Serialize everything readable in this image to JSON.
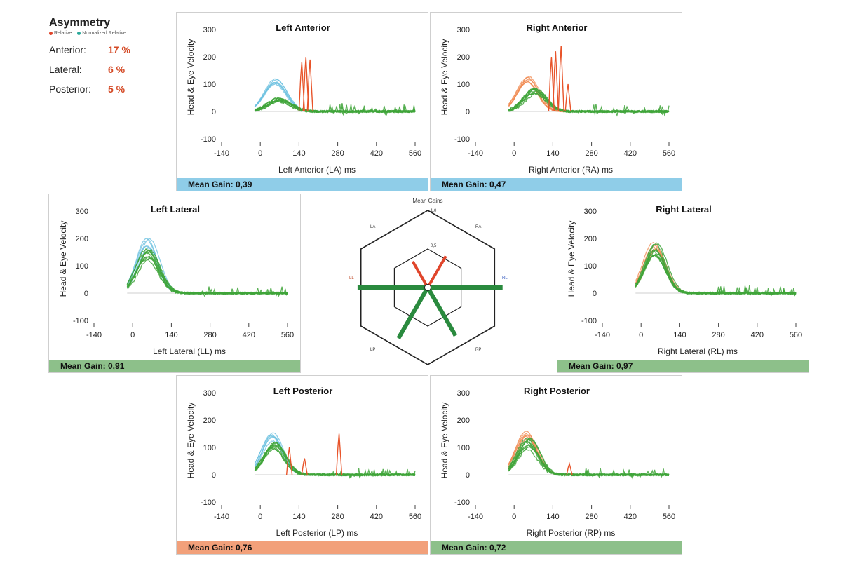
{
  "asymmetry": {
    "title": "Asymmetry",
    "legend": [
      {
        "label": "Relative",
        "color": "#e0452b"
      },
      {
        "label": "Normalized Relative",
        "color": "#2aa89a"
      }
    ],
    "rows": [
      {
        "label": "Anterior:",
        "value": "17 %"
      },
      {
        "label": "Lateral:",
        "value": "6 %"
      },
      {
        "label": "Posterior:",
        "value": "5 %"
      }
    ]
  },
  "colors": {
    "head": "#6cc0e0",
    "head_right": "#f08a50",
    "eye": "#3fa43a",
    "saccade": "#e8542a",
    "bar_blue": "#8fcde8",
    "bar_green": "#8dc08a",
    "bar_orange": "#f2a07a"
  },
  "chart_data": [
    {
      "id": "LA",
      "type": "line",
      "title": "Left Anterior",
      "xlabel": "Left Anterior (LA) ms",
      "ylabel": "Head & Eye Velocity",
      "xticks": [
        -140,
        0,
        140,
        280,
        420,
        560
      ],
      "yticks": [
        -100,
        0,
        100,
        200,
        300
      ],
      "xlim": [
        -140,
        560
      ],
      "ylim": [
        -100,
        300
      ],
      "head_peak": 110,
      "head_center": 55,
      "head_width": 40,
      "head_color": "head",
      "eye_peak": 45,
      "eye_center": 70,
      "eye_width": 42,
      "saccades": [
        {
          "x": 150,
          "y": 180
        },
        {
          "x": 165,
          "y": 200
        },
        {
          "x": 180,
          "y": 190
        }
      ],
      "mean_gain": "Mean Gain: 0,39",
      "bar_color": "bar_blue"
    },
    {
      "id": "RA",
      "type": "line",
      "title": "Right Anterior",
      "xlabel": "Right Anterior (RA) ms",
      "ylabel": "Head & Eye Velocity",
      "xticks": [
        -140,
        0,
        140,
        280,
        420,
        560
      ],
      "yticks": [
        -100,
        0,
        100,
        200,
        300
      ],
      "xlim": [
        -140,
        560
      ],
      "ylim": [
        -100,
        300
      ],
      "head_peak": 120,
      "head_center": 50,
      "head_width": 38,
      "head_color": "head_right",
      "eye_peak": 75,
      "eye_center": 75,
      "eye_width": 40,
      "saccades": [
        {
          "x": 135,
          "y": 200
        },
        {
          "x": 150,
          "y": 220
        },
        {
          "x": 170,
          "y": 240
        },
        {
          "x": 195,
          "y": 100
        }
      ],
      "mean_gain": "Mean Gain: 0,47",
      "bar_color": "bar_blue"
    },
    {
      "id": "LL",
      "type": "line",
      "title": "Left Lateral",
      "xlabel": "Left Lateral (LL) ms",
      "ylabel": "Head & Eye Velocity",
      "xticks": [
        -140,
        0,
        140,
        280,
        420,
        560
      ],
      "yticks": [
        -100,
        0,
        100,
        200,
        300
      ],
      "xlim": [
        -140,
        560
      ],
      "ylim": [
        -100,
        300
      ],
      "head_peak": 185,
      "head_center": 55,
      "head_width": 38,
      "head_color": "head",
      "eye_peak": 140,
      "eye_center": 55,
      "eye_width": 40,
      "saccades": [],
      "mean_gain": "Mean Gain: 0,91",
      "bar_color": "bar_green"
    },
    {
      "id": "RL",
      "type": "line",
      "title": "Right Lateral",
      "xlabel": "Right Lateral (RL) ms",
      "ylabel": "Head & Eye Velocity",
      "xticks": [
        -140,
        0,
        140,
        280,
        420,
        560
      ],
      "yticks": [
        -100,
        0,
        100,
        200,
        300
      ],
      "xlim": [
        -140,
        560
      ],
      "ylim": [
        -100,
        300
      ],
      "head_peak": 175,
      "head_center": 50,
      "head_width": 38,
      "head_color": "head_right",
      "eye_peak": 170,
      "eye_center": 52,
      "eye_width": 38,
      "saccades": [],
      "mean_gain": "Mean Gain: 0,97",
      "bar_color": "bar_green"
    },
    {
      "id": "LP",
      "type": "line",
      "title": "Left Posterior",
      "xlabel": "Left Posterior (LP) ms",
      "ylabel": "Head & Eye Velocity",
      "xticks": [
        -140,
        0,
        140,
        280,
        420,
        560
      ],
      "yticks": [
        -100,
        0,
        100,
        200,
        300
      ],
      "xlim": [
        -140,
        560
      ],
      "ylim": [
        -100,
        300
      ],
      "head_peak": 140,
      "head_center": 45,
      "head_width": 38,
      "head_color": "head",
      "eye_peak": 115,
      "eye_center": 50,
      "eye_width": 38,
      "saccades": [
        {
          "x": 105,
          "y": 100
        },
        {
          "x": 160,
          "y": 60
        },
        {
          "x": 285,
          "y": 150
        }
      ],
      "mean_gain": "Mean Gain: 0,76",
      "bar_color": "bar_orange"
    },
    {
      "id": "RP",
      "type": "line",
      "title": "Right Posterior",
      "xlabel": "Right Posterior (RP) ms",
      "ylabel": "Head & Eye Velocity",
      "xticks": [
        -140,
        0,
        140,
        280,
        420,
        560
      ],
      "yticks": [
        -100,
        0,
        100,
        200,
        300
      ],
      "xlim": [
        -140,
        560
      ],
      "ylim": [
        -100,
        300
      ],
      "head_peak": 150,
      "head_center": 45,
      "head_width": 38,
      "head_color": "head_right",
      "eye_peak": 115,
      "eye_center": 50,
      "eye_width": 38,
      "saccades": [
        {
          "x": 200,
          "y": 40
        }
      ],
      "mean_gain": "Mean Gain: 0,72",
      "bar_color": "bar_green"
    }
  ],
  "radar": {
    "title": "Mean Gains",
    "outer_label": "1,0",
    "inner_label": "0,5",
    "axes": [
      "LA",
      "RA",
      "LL",
      "RL",
      "LP",
      "RP"
    ],
    "gains": {
      "LA": 0.39,
      "RA": 0.47,
      "LL": 0.91,
      "RL": 0.97,
      "LP": 0.76,
      "RP": 0.72
    }
  }
}
